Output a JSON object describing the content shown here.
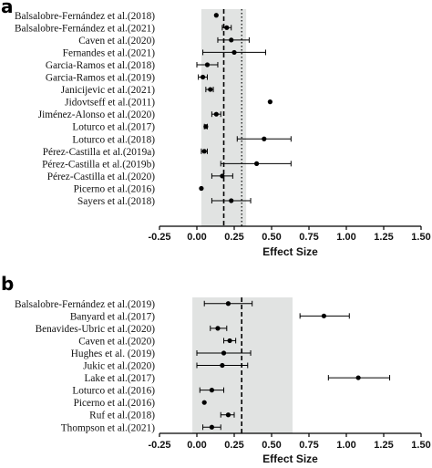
{
  "colors": {
    "band": "#e1e3e2",
    "ink": "#000000"
  },
  "chart_data": [
    {
      "type": "forest",
      "panel_label": "a",
      "xlabel": "Effect Size",
      "xlim": [
        -0.25,
        1.5
      ],
      "xticks": [
        "-0.25",
        "0.00",
        "0.25",
        "0.50",
        "0.75",
        "1.00",
        "1.25",
        "1.50"
      ],
      "pooled_effect": 0.18,
      "pooled_ci": [
        0.03,
        0.33
      ],
      "reference_line": 0.3,
      "reference_style": "dotted",
      "studies": [
        {
          "name": "Balsalobre-Fernández et al.(2018)",
          "effect": 0.13,
          "ci": [
            0.13,
            0.13
          ]
        },
        {
          "name": "Balsalobre-Fernández et al.(2021)",
          "effect": 0.2,
          "ci": [
            0.17,
            0.23
          ]
        },
        {
          "name": "Caven et al.(2020)",
          "effect": 0.23,
          "ci": [
            0.14,
            0.35
          ]
        },
        {
          "name": "Fernandes et al.(2021)",
          "effect": 0.25,
          "ci": [
            0.04,
            0.46
          ]
        },
        {
          "name": "Garcia-Ramos et al.(2018)",
          "effect": 0.07,
          "ci": [
            0.0,
            0.14
          ]
        },
        {
          "name": "Garcia-Ramos et al.(2019)",
          "effect": 0.04,
          "ci": [
            0.01,
            0.07
          ]
        },
        {
          "name": "Janicijevic et al.(2021)",
          "effect": 0.09,
          "ci": [
            0.06,
            0.11
          ]
        },
        {
          "name": "Jidovtseff et al.(2011)",
          "effect": 0.49,
          "ci": [
            0.49,
            0.49
          ]
        },
        {
          "name": "Jiménez-Alonso et al.(2020)",
          "effect": 0.13,
          "ci": [
            0.1,
            0.16
          ]
        },
        {
          "name": "Loturco et al.(2017)",
          "effect": 0.06,
          "ci": [
            0.05,
            0.07
          ]
        },
        {
          "name": "Loturco et al.(2018)",
          "effect": 0.45,
          "ci": [
            0.27,
            0.63
          ]
        },
        {
          "name": "Pérez-Castilla et al.(2019a)",
          "effect": 0.05,
          "ci": [
            0.03,
            0.07
          ]
        },
        {
          "name": "Pérez-Castilla et al.(2019b)",
          "effect": 0.4,
          "ci": [
            0.16,
            0.63
          ]
        },
        {
          "name": "Pérez-Castilla et al.(2020)",
          "effect": 0.17,
          "ci": [
            0.1,
            0.24
          ]
        },
        {
          "name": "Picerno et al.(2016)",
          "effect": 0.03,
          "ci": [
            0.03,
            0.03
          ]
        },
        {
          "name": "Sayers et al.(2018)",
          "effect": 0.23,
          "ci": [
            0.1,
            0.36
          ]
        }
      ]
    },
    {
      "type": "forest",
      "panel_label": "b",
      "xlabel": "Effect Size",
      "xlim": [
        -0.25,
        1.5
      ],
      "xticks": [
        "-0.25",
        "0.00",
        "0.25",
        "0.50",
        "0.75",
        "1.00",
        "1.25",
        "1.50"
      ],
      "pooled_effect": 0.3,
      "pooled_ci": [
        -0.03,
        0.64
      ],
      "reference_line": null,
      "reference_style": "none",
      "studies": [
        {
          "name": "Balsalobre-Fernández et al.(2019)",
          "effect": 0.21,
          "ci": [
            0.05,
            0.37
          ]
        },
        {
          "name": "Banyard et al.(2017)",
          "effect": 0.85,
          "ci": [
            0.69,
            1.02
          ]
        },
        {
          "name": "Benavides-Ubric et al.(2020)",
          "effect": 0.14,
          "ci": [
            0.09,
            0.2
          ]
        },
        {
          "name": "Caven et al.(2020)",
          "effect": 0.22,
          "ci": [
            0.18,
            0.26
          ]
        },
        {
          "name": "Hughes et al. (2019)",
          "effect": 0.18,
          "ci": [
            0.0,
            0.36
          ]
        },
        {
          "name": "Jukic et al.(2020)",
          "effect": 0.17,
          "ci": [
            0.0,
            0.34
          ]
        },
        {
          "name": "Lake et al.(2017)",
          "effect": 1.08,
          "ci": [
            0.88,
            1.29
          ]
        },
        {
          "name": "Loturco et al.(2016)",
          "effect": 0.1,
          "ci": [
            0.02,
            0.18
          ]
        },
        {
          "name": "Picerno et al.(2016)",
          "effect": 0.05,
          "ci": [
            0.05,
            0.05
          ]
        },
        {
          "name": "Ruf et al.(2018)",
          "effect": 0.21,
          "ci": [
            0.16,
            0.25
          ]
        },
        {
          "name": "Thompson et al.(2021)",
          "effect": 0.1,
          "ci": [
            0.04,
            0.16
          ]
        }
      ]
    }
  ]
}
